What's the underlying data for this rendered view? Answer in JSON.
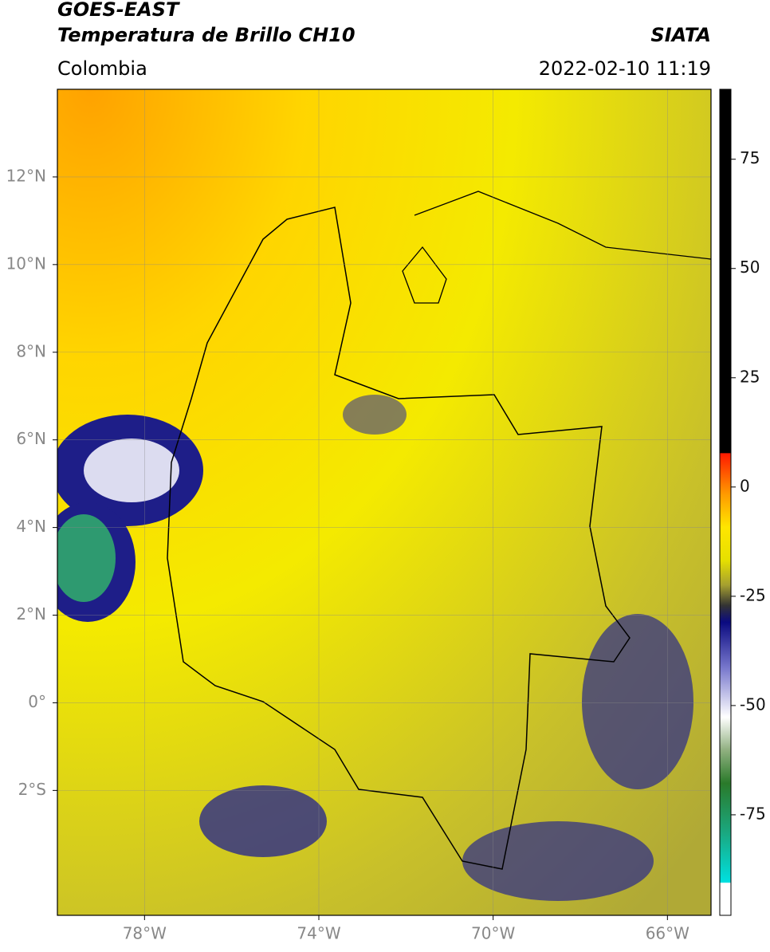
{
  "header": {
    "title": "GOES-EAST",
    "subtitle": "Temperatura de Brillo CH10",
    "source": "SIATA",
    "region": "Colombia",
    "timestamp": "2022-02-10 11:19"
  },
  "map": {
    "xlim": [
      -80,
      -65
    ],
    "ylim": [
      -4.85,
      14
    ],
    "lat_ticks": [
      {
        "value": 12,
        "label": "12°N"
      },
      {
        "value": 10,
        "label": "10°N"
      },
      {
        "value": 8,
        "label": "8°N"
      },
      {
        "value": 6,
        "label": "6°N"
      },
      {
        "value": 4,
        "label": "4°N"
      },
      {
        "value": 2,
        "label": "2°N"
      },
      {
        "value": 0,
        "label": "0°"
      },
      {
        "value": -2,
        "label": "2°S"
      }
    ],
    "lon_ticks": [
      {
        "value": -78,
        "label": "78°W"
      },
      {
        "value": -74,
        "label": "74°W"
      },
      {
        "value": -70,
        "label": "70°W"
      },
      {
        "value": -66,
        "label": "66°W"
      }
    ]
  },
  "colorbar": {
    "lim": [
      -98,
      91
    ],
    "ticks": [
      75,
      50,
      25,
      0,
      -25,
      -50,
      -75
    ]
  }
}
